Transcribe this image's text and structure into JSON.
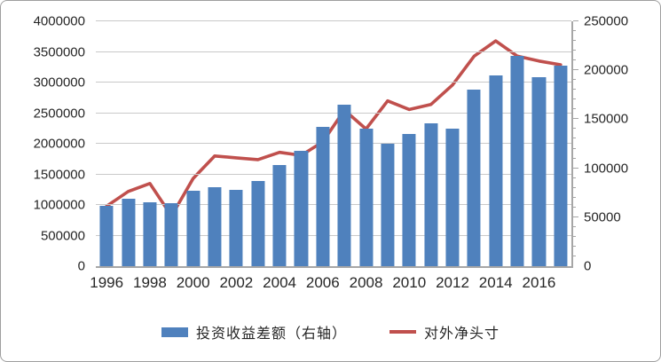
{
  "colors": {
    "bar": "#4F81BD",
    "line": "#C0504D",
    "gridline": "#c9c9c9",
    "axis": "#a6a6a6",
    "text": "#262626",
    "frame_border": "#9e9e9e",
    "background": "#ffffff"
  },
  "chart_data": {
    "type": "combo-bar-line",
    "grid": true,
    "legend_position": "bottom",
    "categories": [
      "1996",
      "1997",
      "1998",
      "1999",
      "2000",
      "2001",
      "2002",
      "2003",
      "2004",
      "2005",
      "2006",
      "2007",
      "2008",
      "2009",
      "2010",
      "2011",
      "2012",
      "2013",
      "2014",
      "2015",
      "2016",
      "2017"
    ],
    "series": [
      {
        "name": "投资收益差额（右轴）",
        "type": "bar",
        "axis": "right",
        "color": "#4F81BD",
        "values": [
          62000,
          69000,
          65000,
          64000,
          77000,
          81000,
          78000,
          87000,
          103000,
          118000,
          142000,
          165000,
          140000,
          125000,
          135000,
          146000,
          140000,
          180000,
          195000,
          215000,
          193000,
          205000
        ]
      },
      {
        "name": "对外净头寸",
        "type": "line",
        "axis": "left",
        "color": "#C0504D",
        "values": [
          980000,
          1220000,
          1350000,
          820000,
          1430000,
          1800000,
          1770000,
          1740000,
          1860000,
          1810000,
          2030000,
          2550000,
          2240000,
          2700000,
          2560000,
          2640000,
          2960000,
          3430000,
          3680000,
          3430000,
          3350000,
          3290000
        ]
      }
    ],
    "left_axis": {
      "min": 0,
      "max": 4000000,
      "step": 500000,
      "tick_labels": [
        "4000000",
        "3500000",
        "3000000",
        "2500000",
        "2000000",
        "1500000",
        "1000000",
        "500000",
        "0"
      ]
    },
    "right_axis": {
      "min": 0,
      "max": 250000,
      "step": 50000,
      "minor_step": 10000,
      "tick_labels": [
        "250000",
        "200000",
        "150000",
        "100000",
        "50000",
        "0"
      ]
    },
    "x_tick_labels": [
      {
        "label": "1996",
        "slot": 0
      },
      {
        "label": "1998",
        "slot": 2
      },
      {
        "label": "2000",
        "slot": 4
      },
      {
        "label": "2002",
        "slot": 6
      },
      {
        "label": "2004",
        "slot": 8
      },
      {
        "label": "2006",
        "slot": 10
      },
      {
        "label": "2008",
        "slot": 12
      },
      {
        "label": "2010",
        "slot": 14
      },
      {
        "label": "2012",
        "slot": 16
      },
      {
        "label": "2014",
        "slot": 18
      },
      {
        "label": "2016",
        "slot": 20
      }
    ]
  }
}
